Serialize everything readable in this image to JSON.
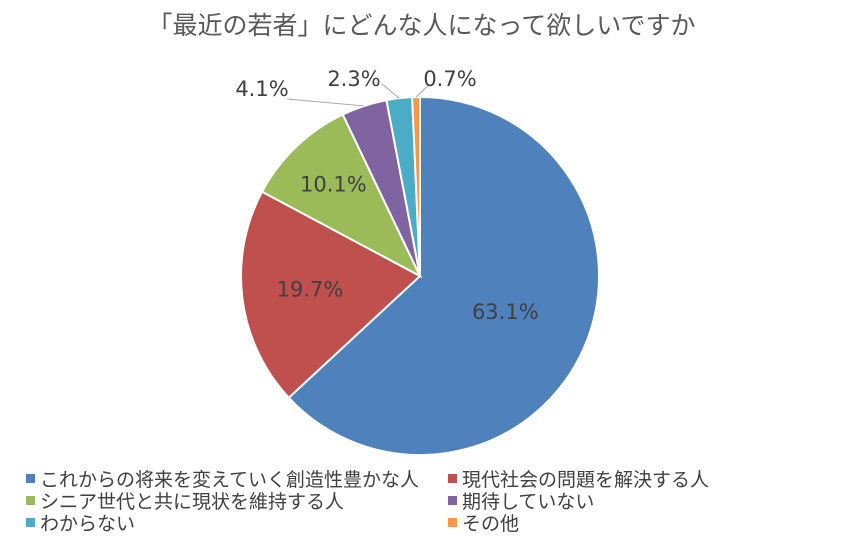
{
  "chart_data": {
    "type": "pie",
    "title": "「最近の若者」にどんな人になって欲しいですか",
    "slices": [
      {
        "label": "これからの将来を変えていく創造性豊かな人",
        "value": 63.1,
        "value_label": "63.1%",
        "color": "#4f81bd"
      },
      {
        "label": "現代社会の問題を解決する人",
        "value": 19.7,
        "value_label": "19.7%",
        "color": "#c0504d"
      },
      {
        "label": "シニア世代と共に現状を維持する人",
        "value": 10.1,
        "value_label": "10.1%",
        "color": "#9bbb59"
      },
      {
        "label": "期待していない",
        "value": 4.1,
        "value_label": "4.1%",
        "color": "#8064a2"
      },
      {
        "label": "わからない",
        "value": 2.3,
        "value_label": "2.3%",
        "color": "#4bacc6"
      },
      {
        "label": "その他",
        "value": 0.7,
        "value_label": "0.7%",
        "color": "#f79646"
      }
    ],
    "legend_position": "bottom"
  }
}
